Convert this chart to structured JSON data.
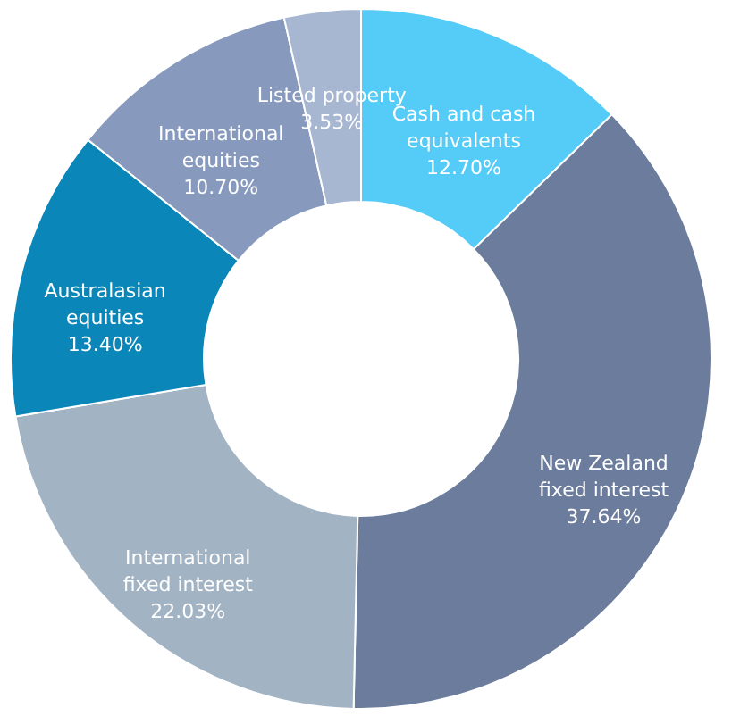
{
  "chart_data": {
    "type": "donut",
    "categories": [
      "Cash and cash equivalents",
      "New Zealand fixed interest",
      "International fixed interest",
      "Australasian equities",
      "International equities",
      "Listed property"
    ],
    "values": [
      12.7,
      37.64,
      22.03,
      13.4,
      10.7,
      3.53
    ],
    "colors": [
      "#55cbf7",
      "#6b7c9c",
      "#a2b3c4",
      "#0a86b8",
      "#8799bd",
      "#a7b7d1"
    ],
    "value_labels": [
      "12.70%",
      "37.64%",
      "22.03%",
      "13.40%",
      "10.70%",
      "3.53%"
    ]
  }
}
